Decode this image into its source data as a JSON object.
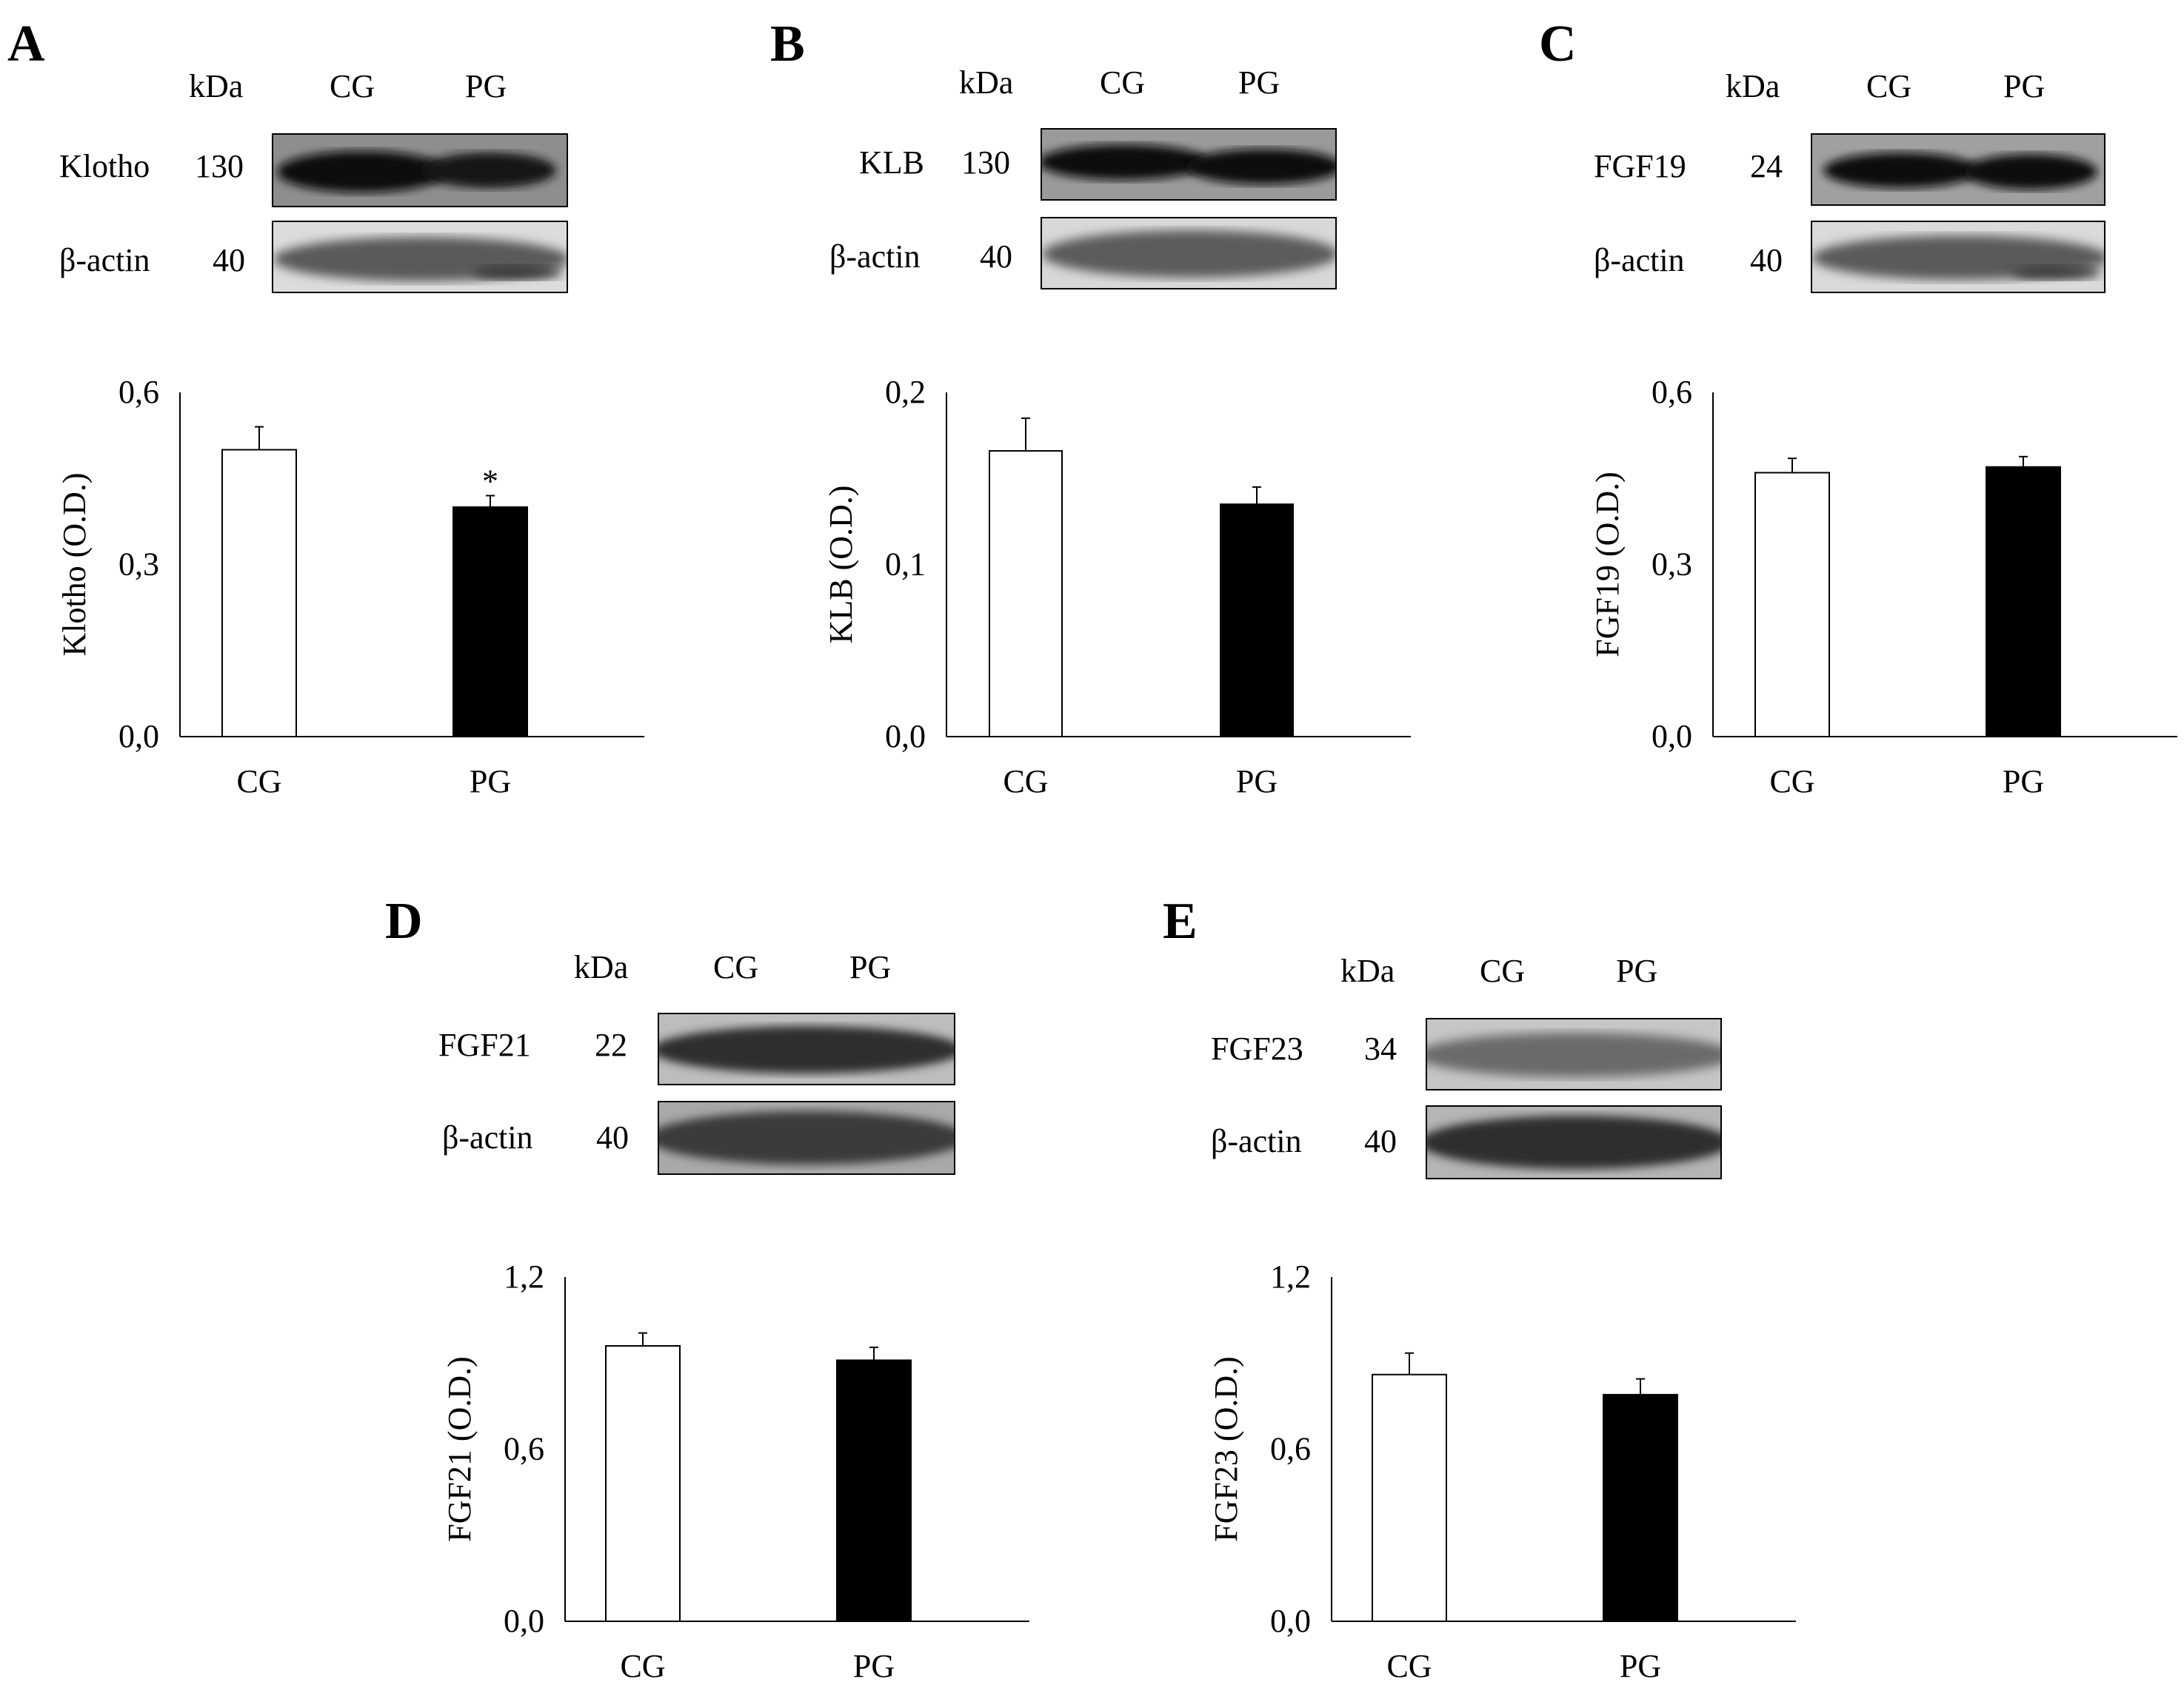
{
  "panels": [
    {
      "letter": "A",
      "blot": {
        "kda_header": "kDa",
        "lane1": "CG",
        "lane2": "PG",
        "rows": [
          {
            "protein": "Klotho",
            "kda": "130"
          },
          {
            "protein": "β-actin",
            "kda": "40"
          }
        ]
      }
    },
    {
      "letter": "B",
      "blot": {
        "kda_header": "kDa",
        "lane1": "CG",
        "lane2": "PG",
        "rows": [
          {
            "protein": "KLB",
            "kda": "130"
          },
          {
            "protein": "β-actin",
            "kda": "40"
          }
        ]
      }
    },
    {
      "letter": "C",
      "blot": {
        "kda_header": "kDa",
        "lane1": "CG",
        "lane2": "PG",
        "rows": [
          {
            "protein": "FGF19",
            "kda": "24"
          },
          {
            "protein": "β-actin",
            "kda": "40"
          }
        ]
      }
    },
    {
      "letter": "D",
      "blot": {
        "kda_header": "kDa",
        "lane1": "CG",
        "lane2": "PG",
        "rows": [
          {
            "protein": "FGF21",
            "kda": "22"
          },
          {
            "protein": "β-actin",
            "kda": "40"
          }
        ]
      }
    },
    {
      "letter": "E",
      "blot": {
        "kda_header": "kDa",
        "lane1": "CG",
        "lane2": "PG",
        "rows": [
          {
            "protein": "FGF23",
            "kda": "34"
          },
          {
            "protein": "β-actin",
            "kda": "40"
          }
        ]
      }
    }
  ],
  "chart_data": [
    {
      "type": "bar",
      "panel": "A",
      "categories": [
        "CG",
        "PG"
      ],
      "values": [
        0.5,
        0.4
      ],
      "errors": [
        0.04,
        0.02
      ],
      "bar_colors": [
        "#ffffff",
        "#000000"
      ],
      "significance": [
        "",
        "*"
      ],
      "ylabel": "Klotho (O.D.)",
      "ylim": [
        0,
        0.6
      ],
      "yticks": [
        "0,0",
        "0,3",
        "0,6"
      ],
      "grid": false
    },
    {
      "type": "bar",
      "panel": "B",
      "categories": [
        "CG",
        "PG"
      ],
      "values": [
        0.166,
        0.135
      ],
      "errors": [
        0.019,
        0.01
      ],
      "bar_colors": [
        "#ffffff",
        "#000000"
      ],
      "significance": [
        "",
        ""
      ],
      "ylabel": "KLB (O.D.)",
      "ylim": [
        0,
        0.2
      ],
      "yticks": [
        "0,0",
        "0,1",
        "0,2"
      ],
      "grid": false
    },
    {
      "type": "bar",
      "panel": "C",
      "categories": [
        "CG",
        "PG"
      ],
      "values": [
        0.46,
        0.47
      ],
      "errors": [
        0.025,
        0.018
      ],
      "bar_colors": [
        "#ffffff",
        "#000000"
      ],
      "significance": [
        "",
        ""
      ],
      "ylabel": "FGF19 (O.D.)",
      "ylim": [
        0,
        0.6
      ],
      "yticks": [
        "0,0",
        "0,3",
        "0,6"
      ],
      "grid": false
    },
    {
      "type": "bar",
      "panel": "D",
      "categories": [
        "CG",
        "PG"
      ],
      "values": [
        0.96,
        0.91
      ],
      "errors": [
        0.045,
        0.045
      ],
      "bar_colors": [
        "#ffffff",
        "#000000"
      ],
      "significance": [
        "",
        ""
      ],
      "ylabel": "FGF21 (O.D.)",
      "ylim": [
        0,
        1.2
      ],
      "yticks": [
        "0,0",
        "0,6",
        "1,2"
      ],
      "grid": false
    },
    {
      "type": "bar",
      "panel": "E",
      "categories": [
        "CG",
        "PG"
      ],
      "values": [
        0.86,
        0.79
      ],
      "errors": [
        0.075,
        0.055
      ],
      "bar_colors": [
        "#ffffff",
        "#000000"
      ],
      "significance": [
        "",
        ""
      ],
      "ylabel": "FGF23 (O.D.)",
      "ylim": [
        0,
        1.2
      ],
      "yticks": [
        "0,0",
        "0,6",
        "1,2"
      ],
      "grid": false
    }
  ]
}
